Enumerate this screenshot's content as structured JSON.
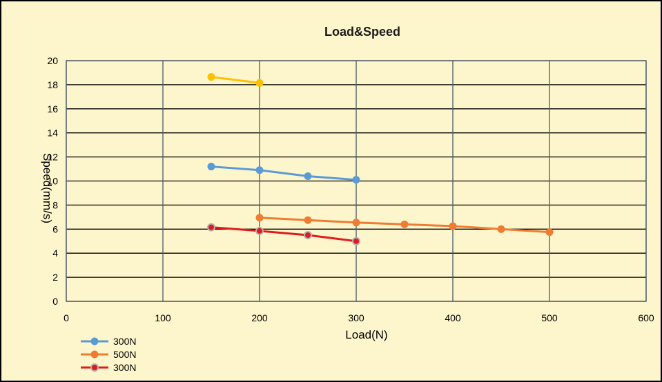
{
  "chart_data": {
    "type": "line",
    "title": "Load&Speed",
    "xlabel": "Load(N)",
    "ylabel": "Speed(mm/s)",
    "xlim": [
      0,
      600
    ],
    "ylim": [
      0,
      20
    ],
    "x_ticks": [
      0,
      100,
      200,
      300,
      400,
      500,
      600
    ],
    "y_ticks": [
      0,
      2,
      4,
      6,
      8,
      10,
      12,
      14,
      16,
      18,
      20
    ],
    "grid": true,
    "legend_position": "bottom-left",
    "series": [
      {
        "name": "300N",
        "color": "#5b9bd5",
        "marker": "circle",
        "in_legend": true,
        "points": [
          [
            150,
            11.2
          ],
          [
            200,
            10.9
          ],
          [
            250,
            10.4
          ],
          [
            300,
            10.1
          ]
        ]
      },
      {
        "name": "500N",
        "color": "#ed7d31",
        "marker": "circle",
        "in_legend": true,
        "points": [
          [
            200,
            6.95
          ],
          [
            250,
            6.75
          ],
          [
            300,
            6.55
          ],
          [
            350,
            6.4
          ],
          [
            400,
            6.25
          ],
          [
            450,
            6.0
          ],
          [
            500,
            5.75
          ]
        ]
      },
      {
        "name": "300N",
        "color": "#e01b1b",
        "marker": "circle-outlined",
        "in_legend": true,
        "points": [
          [
            150,
            6.15
          ],
          [
            200,
            5.85
          ],
          [
            250,
            5.5
          ],
          [
            300,
            5.0
          ]
        ]
      },
      {
        "name": "",
        "color": "#ffc000",
        "marker": "circle",
        "in_legend": false,
        "points": [
          [
            150,
            18.65
          ],
          [
            200,
            18.15
          ]
        ]
      }
    ]
  }
}
